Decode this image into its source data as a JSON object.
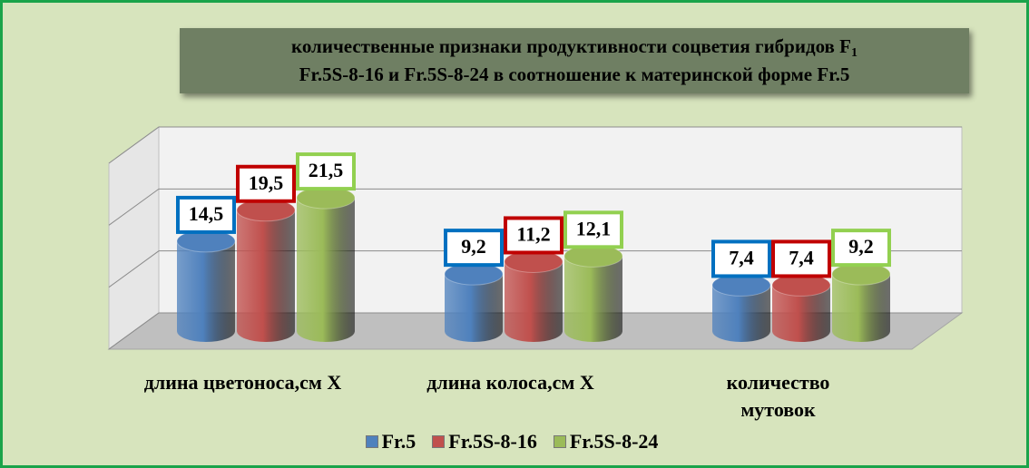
{
  "chart_data": {
    "type": "bar3d",
    "title_lines": [
      "количественные признаки продуктивности соцветия гибридов F",
      "Fr.5S-8-16 и Fr.5S-8-24 в соотношение к материнской форме Fr.5"
    ],
    "title_subscript": "1",
    "categories": [
      "длина цветоноса,см X",
      "длина колоса,см X",
      "количество мутовок"
    ],
    "series": [
      {
        "name": "Fr.5",
        "color": "#4f81bd",
        "label_color": "#0070c0",
        "values": [
          14.5,
          9.2,
          7.4
        ],
        "value_labels": [
          "14,5",
          "9,2",
          "7,4"
        ]
      },
      {
        "name": "Fr.5S-8-16",
        "color": "#c0504d",
        "label_color": "#c00000",
        "values": [
          19.5,
          11.2,
          7.4
        ],
        "value_labels": [
          "19,5",
          "11,2",
          "7,4"
        ]
      },
      {
        "name": "Fr.5S-8-24",
        "color": "#9bbb59",
        "label_color": "#92d050",
        "values": [
          21.5,
          12.1,
          9.2
        ],
        "value_labels": [
          "21,5",
          "12,1",
          "9,2"
        ]
      }
    ],
    "ylim": [
      0,
      30
    ],
    "yticks": [
      0,
      10,
      20,
      30
    ],
    "grid": true
  }
}
